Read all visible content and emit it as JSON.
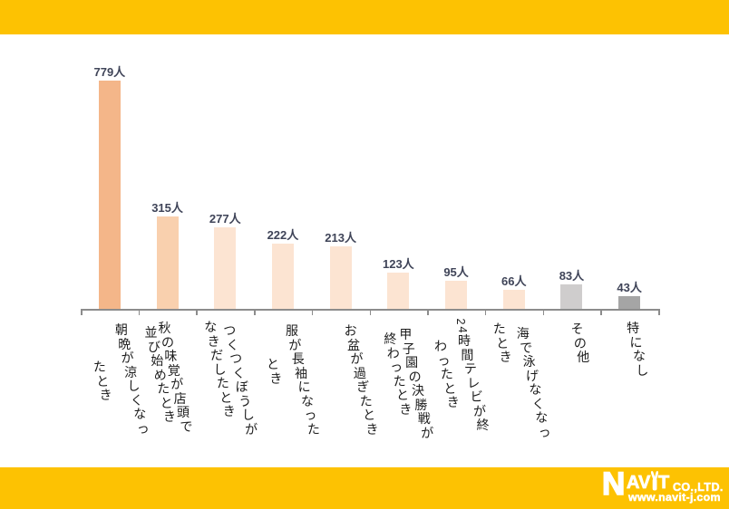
{
  "banner": {
    "color": "#FDC202"
  },
  "chart_data": {
    "type": "bar",
    "categories": [
      "朝晩が涼しくなったとき",
      "秋の味覚が店頭で並び始めたとき",
      "つくつくぼうしがなきだしたとき",
      "服が長袖になったとき",
      "お盆が過ぎたとき",
      "甲子園の決勝戦が終わったとき",
      "24時間テレビが終わったとき",
      "海で泳げなくなったとき",
      "その他",
      "特になし"
    ],
    "values": [
      779,
      315,
      277,
      222,
      213,
      123,
      95,
      66,
      83,
      43
    ],
    "value_suffix": "人",
    "bar_colors": [
      "#F4B689",
      "#F9D0AE",
      "#FCE4D2",
      "#FCE4D2",
      "#FCE4D2",
      "#FCE4D2",
      "#FCE4D2",
      "#FCE4D2",
      "#CFCDCD",
      "#A5A5A5"
    ],
    "value_label_color": "#3F4458",
    "axis_color": "#8C8C8C",
    "ylim": [
      0,
      800
    ],
    "grid": false,
    "legend": false,
    "title": ""
  },
  "footer": {
    "logo_av": "AV",
    "logo_n": "N",
    "logo_t": "T",
    "logo_co": "CO.,LTD.",
    "website": "www.navit-j.com"
  }
}
